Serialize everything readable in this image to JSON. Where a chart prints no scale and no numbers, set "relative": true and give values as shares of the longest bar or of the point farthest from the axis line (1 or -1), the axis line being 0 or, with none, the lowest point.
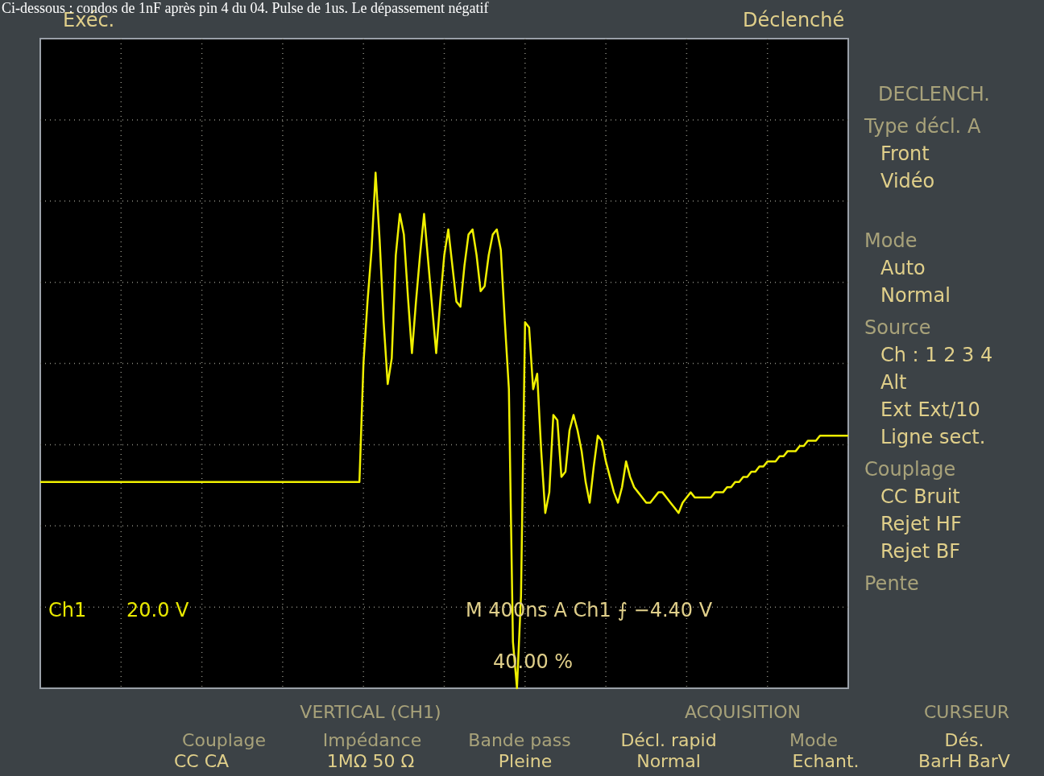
{
  "chart_data": {
    "type": "line",
    "relative": true,
    "grid": true,
    "marker": "none",
    "line_style": "solid",
    "categories": [
      null,
      null,
      null,
      null,
      null,
      null,
      null,
      null,
      null,
      null,
      null,
      null,
      null,
      null,
      null,
      null,
      null,
      null,
      null,
      null,
      null,
      null,
      null,
      null,
      null,
      null,
      null,
      null,
      null,
      null,
      null,
      null,
      null,
      null,
      null,
      null,
      null,
      null,
      null,
      null,
      null,
      null,
      null,
      null,
      null,
      null,
      null,
      null,
      null,
      null,
      null,
      null,
      null,
      null,
      null,
      null,
      null,
      null,
      null,
      null,
      null,
      null,
      null,
      null,
      null,
      null,
      null,
      null,
      null,
      null,
      null,
      null,
      null,
      null,
      null,
      null,
      null,
      null,
      null,
      null,
      null,
      null,
      null,
      null,
      null,
      null,
      null,
      null,
      null,
      null,
      null,
      null,
      null,
      null,
      null,
      null,
      null,
      null,
      null,
      null,
      null,
      null,
      null,
      null,
      null,
      null,
      null,
      null,
      null,
      null,
      null,
      null,
      null,
      null,
      null,
      null,
      null,
      null,
      null,
      null,
      null,
      null,
      null,
      null,
      null,
      null,
      null,
      null,
      null,
      null,
      null,
      null,
      null,
      null,
      null,
      null,
      null,
      null,
      null,
      null,
      null,
      null,
      null,
      null,
      null,
      null,
      null,
      null,
      null,
      null,
      null,
      null,
      null,
      null,
      null,
      null,
      null,
      null,
      null,
      null,
      null,
      null,
      null,
      null,
      null,
      null,
      null,
      null,
      null,
      null,
      null,
      null,
      null,
      null,
      null,
      null,
      null,
      null,
      null,
      null,
      null,
      null,
      null,
      null,
      null,
      null,
      null,
      null,
      null,
      null,
      null,
      null,
      null,
      null,
      null,
      null,
      null,
      null,
      null,
      null,
      null
    ],
    "series": [
      {
        "color": "#f0f000",
        "values": [
          0.4,
          0.4,
          0.4,
          0.4,
          0.4,
          0.4,
          0.4,
          0.4,
          0.4,
          0.4,
          0.4,
          0.4,
          0.4,
          0.4,
          0.4,
          0.4,
          0.4,
          0.4,
          0.4,
          0.4,
          0.4,
          0.4,
          0.4,
          0.4,
          0.4,
          0.4,
          0.4,
          0.4,
          0.4,
          0.4,
          0.4,
          0.4,
          0.4,
          0.4,
          0.4,
          0.4,
          0.4,
          0.4,
          0.4,
          0.4,
          0.4,
          0.4,
          0.4,
          0.4,
          0.4,
          0.4,
          0.4,
          0.4,
          0.4,
          0.4,
          0.4,
          0.4,
          0.4,
          0.4,
          0.4,
          0.4,
          0.4,
          0.4,
          0.4,
          0.4,
          0.4,
          0.4,
          0.4,
          0.4,
          0.4,
          0.4,
          0.4,
          0.4,
          0.4,
          0.4,
          0.4,
          0.4,
          0.4,
          0.4,
          0.4,
          0.4,
          0.4,
          0.4,
          0.4,
          0.4,
          0.63,
          0.75,
          0.85,
          1.0,
          0.87,
          0.71,
          0.59,
          0.64,
          0.84,
          0.92,
          0.88,
          0.76,
          0.65,
          0.75,
          0.84,
          0.92,
          0.83,
          0.74,
          0.65,
          0.75,
          0.84,
          0.89,
          0.82,
          0.75,
          0.74,
          0.82,
          0.88,
          0.89,
          0.84,
          0.77,
          0.78,
          0.84,
          0.88,
          0.89,
          0.85,
          0.71,
          0.58,
          0.09,
          0.0,
          0.18,
          0.71,
          0.7,
          0.58,
          0.61,
          0.46,
          0.34,
          0.38,
          0.53,
          0.52,
          0.41,
          0.42,
          0.5,
          0.53,
          0.5,
          0.46,
          0.4,
          0.36,
          0.43,
          0.49,
          0.48,
          0.44,
          0.41,
          0.38,
          0.36,
          0.39,
          0.44,
          0.41,
          0.39,
          0.38,
          0.37,
          0.36,
          0.36,
          0.37,
          0.38,
          0.38,
          0.37,
          0.36,
          0.35,
          0.34,
          0.36,
          0.37,
          0.38,
          0.37,
          0.37,
          0.37,
          0.37,
          0.37,
          0.38,
          0.38,
          0.38,
          0.39,
          0.39,
          0.4,
          0.4,
          0.41,
          0.41,
          0.42,
          0.42,
          0.43,
          0.43,
          0.44,
          0.44,
          0.44,
          0.45,
          0.45,
          0.46,
          0.46,
          0.46,
          0.47,
          0.47,
          0.48,
          0.48,
          0.48,
          0.49,
          0.49,
          0.49,
          0.49,
          0.49,
          0.49,
          0.49,
          0.49
        ]
      }
    ],
    "annotations": [
      "Ci-dessous : condos de 1nF après pin 4 du 04. Pulse de 1us. Le dépassement négatif",
      "Exéc.",
      "Déclenché",
      "Ch1",
      "20.0 V",
      "M 400ns  A  Ch1  ⨍  −4.40 V",
      "40.00 %",
      "DECLENCH.",
      "Type décl. A",
      "Front",
      "Vidéo",
      "Mode",
      "Auto",
      "Normal",
      "Source",
      "Ch : 1  2  3  4",
      "Alt",
      "Ext  Ext/10",
      "Ligne sect.",
      "Couplage",
      "CC      Bruit",
      "Rejet HF",
      "Rejet BF",
      "Pente",
      "VERTICAL (CH1)",
      "ACQUISITION",
      "CURSEUR",
      "Couplage",
      "Impédance",
      "Bande pass",
      "Décl. rapid",
      "Mode",
      "Dés.",
      "CC   CA",
      "1MΩ  50 Ω",
      "Pleine",
      "Normal",
      "Echant.",
      "BarH BarV"
    ]
  }
}
